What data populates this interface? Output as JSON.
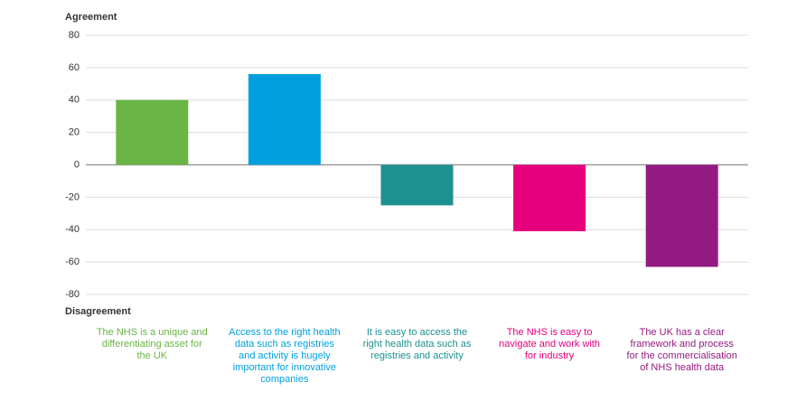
{
  "chart_data": {
    "type": "bar",
    "y_label_top": "Agreement",
    "y_label_bottom": "Disagreement",
    "categories": [
      "The NHS is a unique and differentiating asset for the UK",
      "Access to the right health data such as registries and activity is hugely important for innovative companies",
      "It is easy to access the right health data such as registries and activity",
      "The NHS is easy to navigate and work with for industry",
      "The UK has a clear framework and process for the commercialisation of NHS health data"
    ],
    "values": [
      40,
      56,
      -25,
      -41,
      -63
    ],
    "colors": [
      "#6ab545",
      "#00a0e0",
      "#1d9090",
      "#e6007e",
      "#931a80"
    ],
    "ylim": [
      -80,
      80
    ],
    "yticks": [
      -80,
      -60,
      -40,
      -20,
      0,
      20,
      40,
      60,
      80
    ],
    "grid": true
  }
}
